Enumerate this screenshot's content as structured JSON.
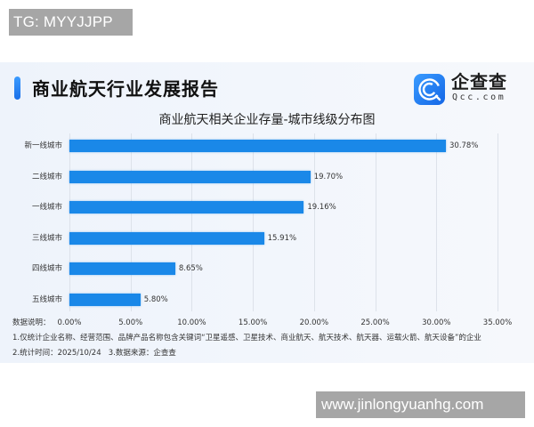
{
  "watermarks": {
    "top": "TG: MYYJJPP",
    "bottom": "www.jinlongyuanhg.com"
  },
  "header": {
    "title": "商业航天行业发展报告",
    "logo_cn": "企查查",
    "logo_en": "Qcc.com",
    "accent_color": "#1a7ff0"
  },
  "chart_data": {
    "type": "bar",
    "orientation": "horizontal",
    "title": "商业航天相关企业存量-城市线级分布图",
    "categories": [
      "新一线城市",
      "二线城市",
      "一线城市",
      "三线城市",
      "四线城市",
      "五线城市"
    ],
    "values": [
      30.78,
      19.7,
      19.16,
      15.91,
      8.65,
      5.8
    ],
    "value_labels": [
      "30.78%",
      "19.70%",
      "19.16%",
      "15.91%",
      "8.65%",
      "5.80%"
    ],
    "xlabel": "",
    "ylabel": "",
    "xlim": [
      0,
      35
    ],
    "xticks": [
      "0.00%",
      "5.00%",
      "10.00%",
      "15.00%",
      "20.00%",
      "25.00%",
      "30.00%",
      "35.00%"
    ],
    "grid": true,
    "bar_color": "#1a88e8",
    "legend": null
  },
  "footnotes": {
    "label": "数据说明：",
    "line1": "1.仅统计企业名称、经营范围、品牌产品名称包含关键词“卫星遥感、卫星技术、商业航天、航天技术、航天器、运载火箭、航天设备”的企业",
    "line2": "2.统计时间：2025/10/24   3.数据来源：企查查"
  }
}
